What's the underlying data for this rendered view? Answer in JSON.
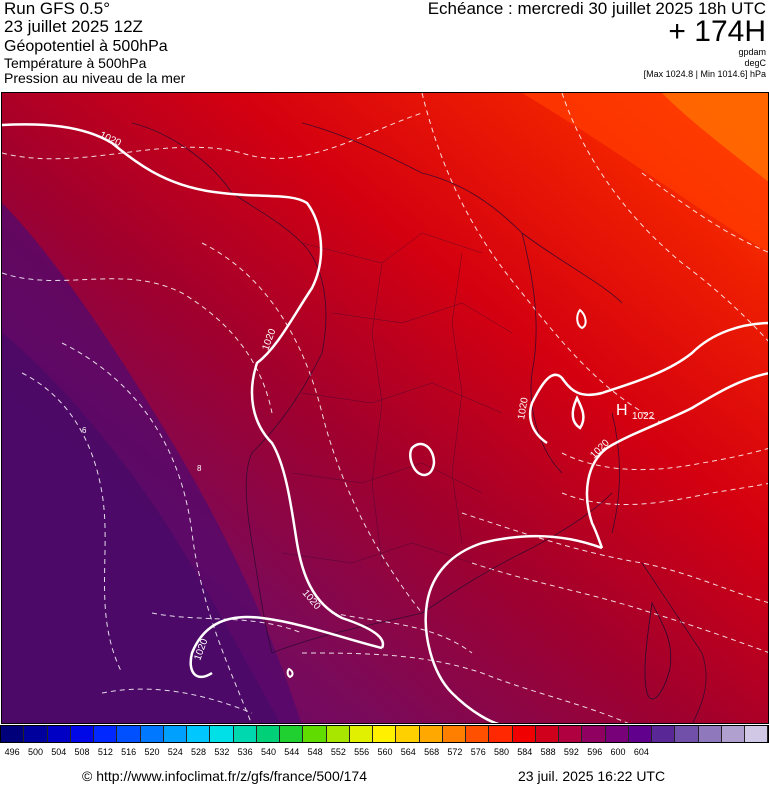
{
  "header": {
    "run": "Run GFS 0.5°",
    "run_date": "23 juillet 2025 12Z",
    "geopotential": "Géopotentiel à 500hPa",
    "temperature": "Température à 500hPa",
    "pressure": "Pression au niveau de la mer",
    "echeance": "Echéance : mercredi 30 juillet 2025 18h UTC",
    "hour_offset": "+ 174H",
    "unit_geo": "gpdam",
    "unit_temp": "degC",
    "pressure_range": "[Max 1024.8 | Min 1014.6] hPa"
  },
  "map": {
    "isobar_labels": [
      "1020",
      "1020",
      "1020",
      "1020",
      "1020",
      "1020"
    ],
    "high_marker": "H",
    "high_value": "1022",
    "small_labels": [
      "6",
      "8"
    ]
  },
  "colorbar": {
    "labels": [
      "496",
      "500",
      "504",
      "508",
      "512",
      "516",
      "520",
      "524",
      "528",
      "532",
      "536",
      "540",
      "544",
      "548",
      "552",
      "556",
      "560",
      "564",
      "568",
      "572",
      "576",
      "580",
      "584",
      "588",
      "592",
      "596",
      "600",
      "604"
    ],
    "colors": [
      "#00007a",
      "#00009c",
      "#0000c4",
      "#0008e8",
      "#0028ff",
      "#0050ff",
      "#0078ff",
      "#00a0ff",
      "#00c8ff",
      "#00e0e6",
      "#00d8b0",
      "#00d078",
      "#20d030",
      "#60dc00",
      "#a8e600",
      "#e0f000",
      "#fff000",
      "#ffd000",
      "#ffa800",
      "#ff8000",
      "#ff5000",
      "#ff2800",
      "#f00000",
      "#d0001c",
      "#b00040",
      "#900060",
      "#780078",
      "#60008c",
      "#5a2896",
      "#7050a8",
      "#9078bc",
      "#b0a0d0",
      "#d0c8e4"
    ]
  },
  "footer": {
    "url": "© http://www.infoclimat.fr/z/gfs/france/500/174",
    "timestamp": "23 juil. 2025 16:22 UTC"
  }
}
